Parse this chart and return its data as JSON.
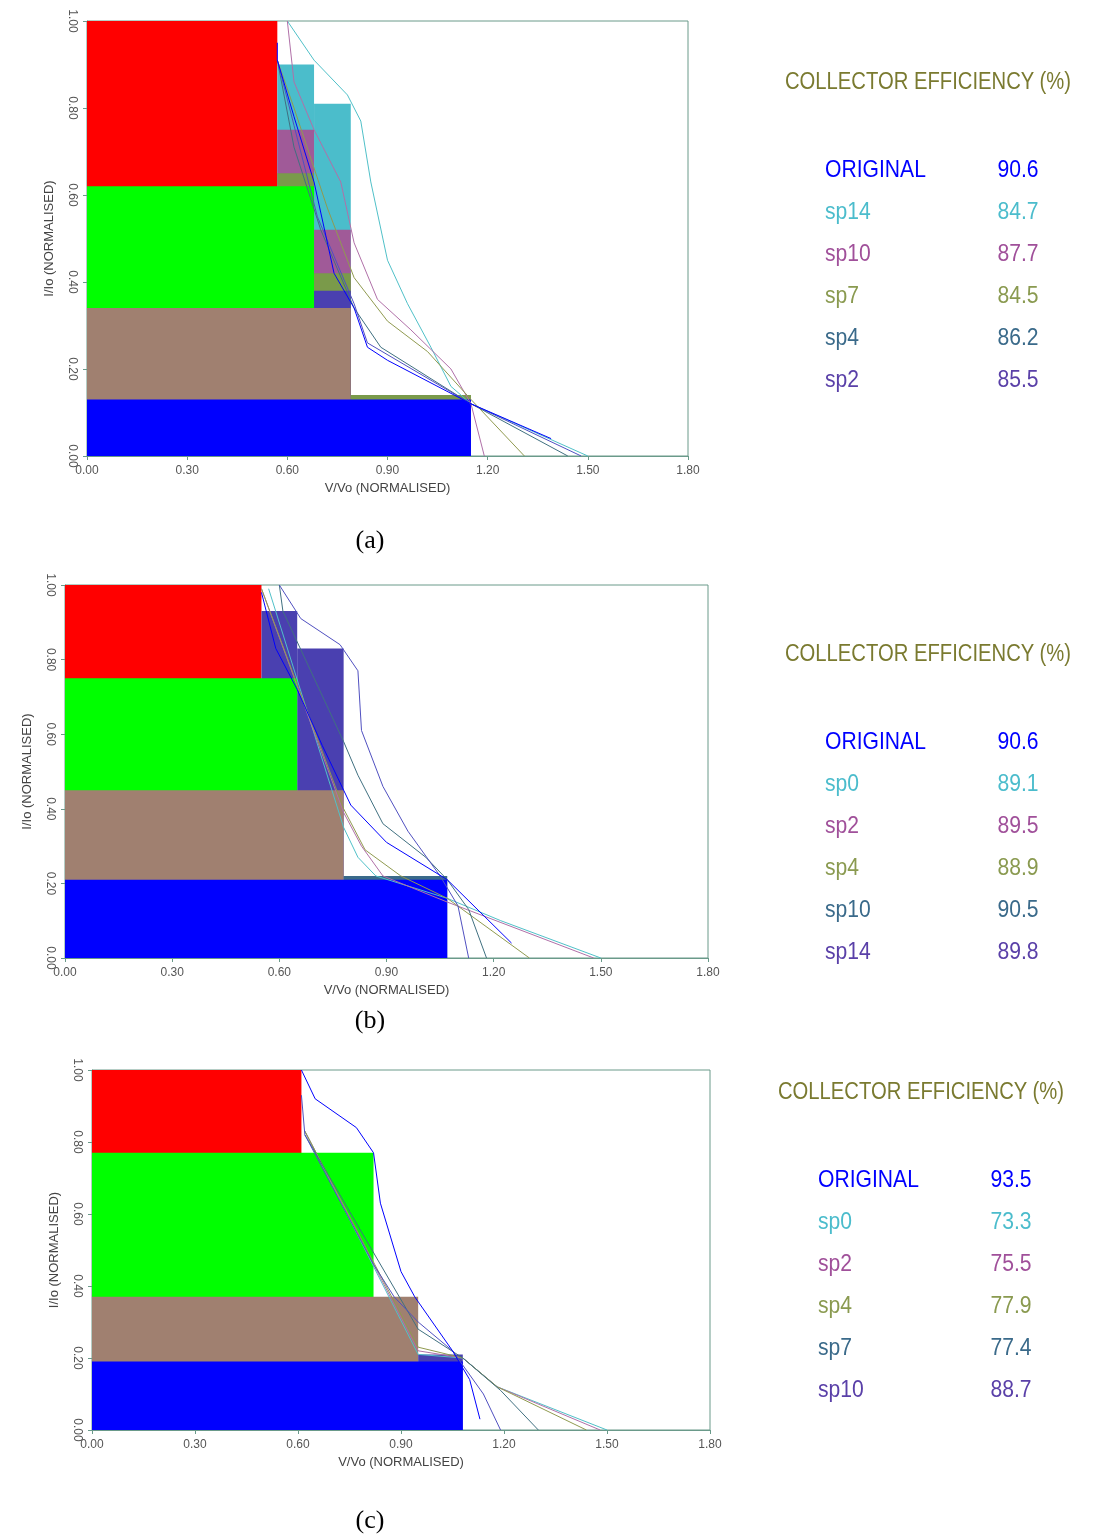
{
  "chart_data": [
    {
      "type": "line",
      "xlabel": "V/Vo (NORMALISED)",
      "ylabel": "I/Io (NORMALISED)",
      "annotations": [
        "(a)"
      ],
      "xlim": [
        0,
        1.8
      ],
      "ylim": [
        0,
        1
      ],
      "xticks": [
        {
          "value": 0,
          "label": "0.00"
        },
        {
          "value": 0.3,
          "label": "0.30"
        },
        {
          "value": 0.6,
          "label": "0.60"
        },
        {
          "value": 0.9,
          "label": "0.90"
        },
        {
          "value": 1.2,
          "label": "1.20"
        },
        {
          "value": 1.5,
          "label": "1.50"
        },
        {
          "value": 1.8,
          "label": "1.80"
        }
      ],
      "yticks": [
        {
          "value": 0,
          "label": "0.00"
        },
        {
          "value": 0.2,
          "label": "0.20"
        },
        {
          "value": 0.4,
          "label": "0.40"
        },
        {
          "value": 0.6,
          "label": "0.60"
        },
        {
          "value": 0.8,
          "label": "0.80"
        },
        {
          "value": 1,
          "label": "1.00"
        }
      ],
      "series": [
        {
          "type": "area",
          "color": "#ff0000",
          "x": [
            0,
            0.57
          ],
          "values": [
            1,
            1
          ]
        },
        {
          "type": "area",
          "color": "#4bbdcb",
          "x": [
            0.57,
            0.68
          ],
          "values": [
            0.9,
            0.9
          ]
        },
        {
          "type": "area",
          "color": "#4bbdcb",
          "x": [
            0.68,
            0.79
          ],
          "values": [
            0.81,
            0.81
          ]
        },
        {
          "type": "area",
          "color": "#a05a98",
          "x": [
            0.57,
            0.68
          ],
          "values": [
            0.75,
            0.75
          ]
        },
        {
          "type": "area",
          "color": "#7a9a4a",
          "x": [
            0.57,
            0.68
          ],
          "values": [
            0.65,
            0.65
          ]
        },
        {
          "type": "area",
          "color": "#00ff00",
          "x": [
            0,
            0.68
          ],
          "values": [
            0.62,
            0.62
          ]
        },
        {
          "type": "area",
          "color": "#a05a98",
          "x": [
            0.68,
            0.79
          ],
          "values": [
            0.52,
            0.52
          ]
        },
        {
          "type": "area",
          "color": "#7a9a4a",
          "x": [
            0.68,
            0.79
          ],
          "values": [
            0.42,
            0.42
          ]
        },
        {
          "type": "area",
          "color": "#4a40b0",
          "x": [
            0.68,
            0.79
          ],
          "values": [
            0.38,
            0.38
          ]
        },
        {
          "type": "area",
          "color": "#a08070",
          "x": [
            0,
            0.79
          ],
          "values": [
            0.34,
            0.34
          ]
        },
        {
          "type": "area",
          "color": "#7a9a4a",
          "x": [
            0.79,
            1.15
          ],
          "values": [
            0.14,
            0.14
          ]
        },
        {
          "type": "area",
          "color": "#0000ff",
          "x": [
            0,
            1.15
          ],
          "values": [
            0.13,
            0.13
          ]
        },
        {
          "type": "line",
          "color": "#50c0c8",
          "x": [
            0.6,
            0.68,
            0.78,
            0.82,
            0.85,
            0.9,
            0.96,
            1.03,
            1.09,
            1.15,
            1.5
          ],
          "values": [
            1,
            0.91,
            0.83,
            0.77,
            0.63,
            0.45,
            0.35,
            0.25,
            0.16,
            0.12,
            0
          ]
        },
        {
          "type": "line",
          "color": "#b070a8",
          "x": [
            0.6,
            0.62,
            0.68,
            0.76,
            0.8,
            0.87,
            0.97,
            1.09,
            1.15,
            1.19
          ],
          "values": [
            1,
            0.86,
            0.75,
            0.63,
            0.49,
            0.36,
            0.29,
            0.2,
            0.12,
            0
          ]
        },
        {
          "type": "line",
          "color": "#909a50",
          "x": [
            0.57,
            0.62,
            0.72,
            0.8,
            0.9,
            1.02,
            1.15,
            1.31
          ],
          "values": [
            0.91,
            0.8,
            0.57,
            0.41,
            0.31,
            0.24,
            0.13,
            0
          ]
        },
        {
          "type": "line",
          "color": "#407080",
          "x": [
            0.57,
            0.62,
            0.7,
            0.8,
            0.88,
            1.15,
            1.44
          ],
          "values": [
            0.91,
            0.71,
            0.52,
            0.34,
            0.25,
            0.12,
            0
          ]
        },
        {
          "type": "line",
          "color": "#5050c0",
          "x": [
            0.57,
            0.62,
            0.69,
            0.8,
            0.84,
            1.15,
            1.48
          ],
          "values": [
            0.91,
            0.76,
            0.55,
            0.35,
            0.26,
            0.12,
            0
          ]
        },
        {
          "type": "line",
          "color": "#0000ff",
          "x": [
            0.57,
            0.57,
            0.62,
            0.68,
            0.74,
            0.8,
            0.84,
            0.9,
            1.15,
            1.39
          ],
          "values": [
            0.95,
            0.91,
            0.78,
            0.63,
            0.42,
            0.34,
            0.25,
            0.22,
            0.12,
            0.04
          ]
        }
      ]
    },
    {
      "type": "other",
      "title": "COLLECTOR EFFICIENCY (%)",
      "data_labels": true,
      "categories": [
        "ORIGINAL",
        "sp14",
        "sp10",
        "sp7",
        "sp4",
        "sp2"
      ],
      "values": [
        90.6,
        84.7,
        87.7,
        84.5,
        86.2,
        85.5
      ],
      "colors": [
        "#0000ff",
        "#4bbccc",
        "#a0509a",
        "#8a9a50",
        "#3a6a8a",
        "#5a40a8"
      ]
    },
    {
      "type": "line",
      "xlabel": "V/Vo (NORMALISED)",
      "ylabel": "I/Io (NORMALISED)",
      "annotations": [
        "(b)"
      ],
      "xlim": [
        0,
        1.8
      ],
      "ylim": [
        0,
        1
      ],
      "xticks": [
        {
          "value": 0,
          "label": "0.00"
        },
        {
          "value": 0.3,
          "label": "0.30"
        },
        {
          "value": 0.6,
          "label": "0.60"
        },
        {
          "value": 0.9,
          "label": "0.90"
        },
        {
          "value": 1.2,
          "label": "1.20"
        },
        {
          "value": 1.5,
          "label": "1.50"
        },
        {
          "value": 1.8,
          "label": "1.80"
        }
      ],
      "yticks": [
        {
          "value": 0,
          "label": "0.00"
        },
        {
          "value": 0.2,
          "label": "0.20"
        },
        {
          "value": 0.4,
          "label": "0.40"
        },
        {
          "value": 0.6,
          "label": "0.60"
        },
        {
          "value": 0.8,
          "label": "0.80"
        },
        {
          "value": 1,
          "label": "1.00"
        }
      ],
      "series": [
        {
          "type": "area",
          "color": "#ff0000",
          "x": [
            0,
            0.55
          ],
          "values": [
            1,
            1
          ]
        },
        {
          "type": "area",
          "color": "#4a40b0",
          "x": [
            0.55,
            0.65
          ],
          "values": [
            0.93,
            0.93
          ]
        },
        {
          "type": "area",
          "color": "#4a40b0",
          "x": [
            0.65,
            0.78
          ],
          "values": [
            0.83,
            0.83
          ]
        },
        {
          "type": "area",
          "color": "#00ff00",
          "x": [
            0,
            0.65
          ],
          "values": [
            0.75,
            0.75
          ]
        },
        {
          "type": "area",
          "color": "#a08070",
          "x": [
            0,
            0.78
          ],
          "values": [
            0.45,
            0.45
          ]
        },
        {
          "type": "area",
          "color": "#3a6a8a",
          "x": [
            0.78,
            1.07
          ],
          "values": [
            0.22,
            0.22
          ]
        },
        {
          "type": "area",
          "color": "#0000ff",
          "x": [
            0,
            1.07
          ],
          "values": [
            0.21,
            0.21
          ]
        },
        {
          "type": "line",
          "color": "#50c0c8",
          "x": [
            0.57,
            0.78,
            0.82,
            0.87,
            1.07,
            1.22,
            1.5
          ],
          "values": [
            0.99,
            0.35,
            0.27,
            0.22,
            0.16,
            0.1,
            0
          ]
        },
        {
          "type": "line",
          "color": "#b070a8",
          "x": [
            0.55,
            0.78,
            0.83,
            0.89,
            1.07,
            1.48
          ],
          "values": [
            0.99,
            0.39,
            0.3,
            0.22,
            0.15,
            0
          ]
        },
        {
          "type": "line",
          "color": "#909a50",
          "x": [
            0.55,
            0.78,
            0.84,
            0.94,
            1.07,
            1.3
          ],
          "values": [
            0.99,
            0.4,
            0.29,
            0.22,
            0.16,
            0
          ]
        },
        {
          "type": "line",
          "color": "#407080",
          "x": [
            0.6,
            0.61,
            0.78,
            0.82,
            0.89,
            1.01,
            1.07,
            1.13,
            1.18
          ],
          "values": [
            1,
            0.93,
            0.58,
            0.49,
            0.36,
            0.27,
            0.21,
            0.13,
            0
          ]
        },
        {
          "type": "line",
          "color": "#5050c0",
          "x": [
            0.6,
            0.66,
            0.77,
            0.82,
            0.83,
            0.89,
            0.96,
            1.05,
            1.1,
            1.13
          ],
          "values": [
            1,
            0.91,
            0.84,
            0.77,
            0.61,
            0.46,
            0.34,
            0.22,
            0.14,
            0
          ]
        },
        {
          "type": "line",
          "color": "#0000ff",
          "x": [
            0.55,
            0.59,
            0.65,
            0.72,
            0.78,
            0.8,
            0.9,
            1.07,
            1.25
          ],
          "values": [
            0.98,
            0.83,
            0.72,
            0.57,
            0.45,
            0.41,
            0.31,
            0.21,
            0.04
          ]
        }
      ]
    },
    {
      "type": "other",
      "title": "COLLECTOR EFFICIENCY (%)",
      "data_labels": true,
      "categories": [
        "ORIGINAL",
        "sp0",
        "sp2",
        "sp4",
        "sp10",
        "sp14"
      ],
      "values": [
        90.6,
        89.1,
        89.5,
        88.9,
        90.5,
        89.8
      ],
      "colors": [
        "#0000ff",
        "#4bbccc",
        "#a0509a",
        "#8a9a50",
        "#3a6a8a",
        "#5a40a8"
      ]
    },
    {
      "type": "line",
      "xlabel": "V/Vo (NORMALISED)",
      "ylabel": "I/Io (NORMALISED)",
      "annotations": [
        "(c)"
      ],
      "xlim": [
        0,
        1.8
      ],
      "ylim": [
        0,
        1
      ],
      "xticks": [
        {
          "value": 0,
          "label": "0.00"
        },
        {
          "value": 0.3,
          "label": "0.30"
        },
        {
          "value": 0.6,
          "label": "0.60"
        },
        {
          "value": 0.9,
          "label": "0.90"
        },
        {
          "value": 1.2,
          "label": "1.20"
        },
        {
          "value": 1.5,
          "label": "1.50"
        },
        {
          "value": 1.8,
          "label": "1.80"
        }
      ],
      "yticks": [
        {
          "value": 0,
          "label": "0.00"
        },
        {
          "value": 0.2,
          "label": "0.20"
        },
        {
          "value": 0.4,
          "label": "0.40"
        },
        {
          "value": 0.6,
          "label": "0.60"
        },
        {
          "value": 0.8,
          "label": "0.80"
        },
        {
          "value": 1,
          "label": "1.00"
        }
      ],
      "series": [
        {
          "type": "area",
          "color": "#ff0000",
          "x": [
            0,
            0.61
          ],
          "values": [
            1,
            1
          ]
        },
        {
          "type": "area",
          "color": "#00ff00",
          "x": [
            0,
            0.82
          ],
          "values": [
            0.77,
            0.77
          ]
        },
        {
          "type": "area",
          "color": "#a08070",
          "x": [
            0,
            0.95
          ],
          "values": [
            0.37,
            0.37
          ]
        },
        {
          "type": "area",
          "color": "#4a40b0",
          "x": [
            0.95,
            1.08
          ],
          "values": [
            0.21,
            0.21
          ]
        },
        {
          "type": "area",
          "color": "#0000ff",
          "x": [
            0,
            1.08
          ],
          "values": [
            0.19,
            0.19
          ]
        },
        {
          "type": "line",
          "color": "#50c0c8",
          "x": [
            0.62,
            0.95,
            1.08,
            1.18,
            1.5
          ],
          "values": [
            0.83,
            0.21,
            0.2,
            0.12,
            0
          ]
        },
        {
          "type": "line",
          "color": "#b070a8",
          "x": [
            0.62,
            0.95,
            1.08,
            1.18,
            1.48
          ],
          "values": [
            0.83,
            0.22,
            0.2,
            0.12,
            0
          ]
        },
        {
          "type": "line",
          "color": "#909a50",
          "x": [
            0.62,
            0.95,
            1.08,
            1.18,
            1.44
          ],
          "values": [
            0.83,
            0.23,
            0.2,
            0.12,
            0
          ]
        },
        {
          "type": "line",
          "color": "#407080",
          "x": [
            0.62,
            0.95,
            1.08,
            1.19,
            1.3
          ],
          "values": [
            0.82,
            0.28,
            0.2,
            0.11,
            0
          ]
        },
        {
          "type": "line",
          "color": "#5050c0",
          "x": [
            0.61,
            0.62,
            0.82,
            0.88,
            0.95,
            1.05,
            1.14,
            1.19
          ],
          "values": [
            0.93,
            0.82,
            0.46,
            0.37,
            0.3,
            0.22,
            0.1,
            0
          ]
        },
        {
          "type": "line",
          "color": "#0000ff",
          "x": [
            0.61,
            0.65,
            0.77,
            0.82,
            0.84,
            0.9,
            0.94,
            1.05,
            1.1,
            1.13
          ],
          "values": [
            1,
            0.92,
            0.84,
            0.77,
            0.63,
            0.44,
            0.37,
            0.22,
            0.14,
            0.03
          ]
        }
      ]
    },
    {
      "type": "other",
      "title": "COLLECTOR EFFICIENCY (%)",
      "data_labels": true,
      "categories": [
        "ORIGINAL",
        "sp0",
        "sp2",
        "sp4",
        "sp7",
        "sp10"
      ],
      "values": [
        93.5,
        73.3,
        75.5,
        77.9,
        77.4,
        88.7
      ],
      "colors": [
        "#0000ff",
        "#4bbccc",
        "#a0509a",
        "#8a9a50",
        "#3a6a8a",
        "#5a40a8"
      ]
    }
  ]
}
